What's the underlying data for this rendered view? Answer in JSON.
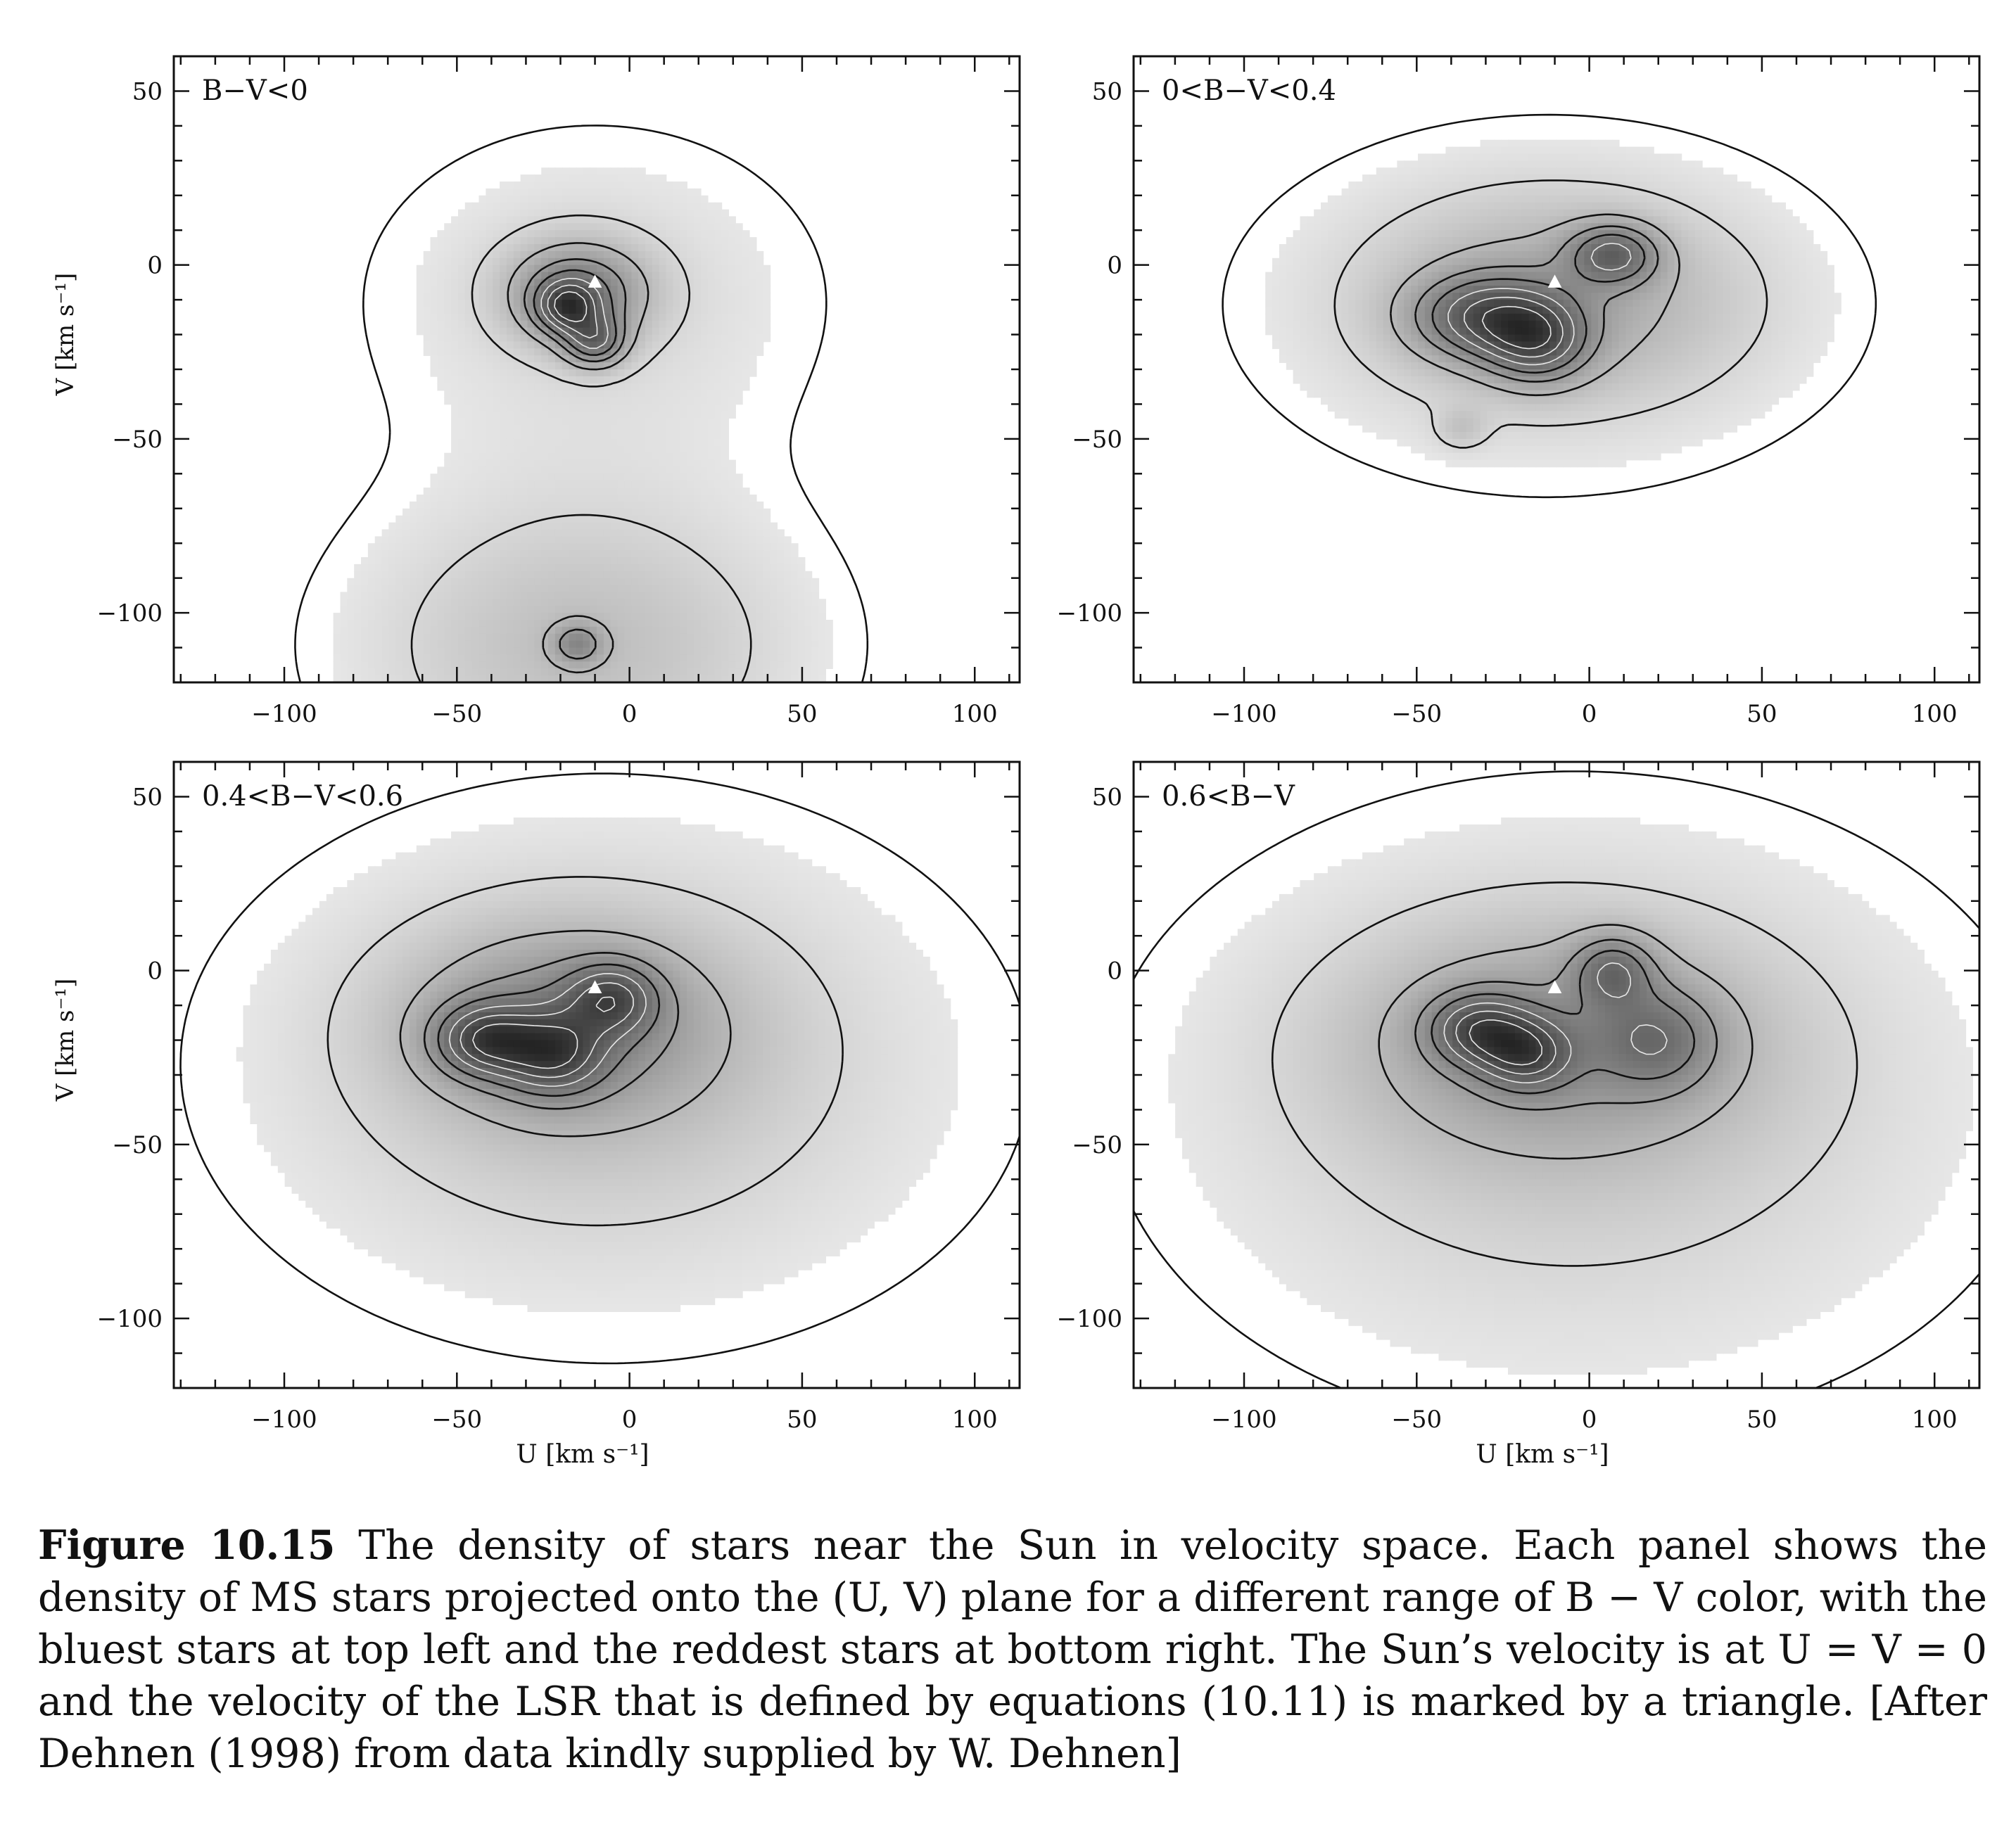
{
  "figure": {
    "label": "Figure 10.15",
    "caption": "The density of stars near the Sun in velocity space. Each panel shows the density of MS stars projected onto the (U, V) plane for a different range of B − V color, with the bluest stars at top left and the reddest stars at bottom right. The Sun’s velocity is at U = V = 0 and the velocity of the LSR that is defined by equations (10.11) is marked by a triangle. [After Dehnen (1998) from data kindly supplied by W. Dehnen]"
  },
  "chart_data": [
    {
      "type": "contour",
      "panel": "top-left",
      "label": "B−V<0",
      "xlabel": "",
      "ylabel": "V [km s⁻¹]",
      "xlim": [
        -132,
        113
      ],
      "ylim": [
        -120,
        60
      ],
      "xticks": [
        -100,
        -50,
        0,
        50,
        100
      ],
      "yticks": [
        50,
        0,
        -50,
        -100
      ],
      "xtick_labels": [
        "−100",
        "−50",
        "0",
        "50",
        "100"
      ],
      "ytick_labels": [
        "50",
        "0",
        "−50",
        "−100"
      ],
      "lsr_marker": {
        "U": -10,
        "V": -5
      },
      "blobs": [
        {
          "U": -18,
          "V": -12,
          "su": 6,
          "sv": 5,
          "w": 1.0
        },
        {
          "U": -10,
          "V": -22,
          "su": 6,
          "sv": 5,
          "w": 0.9
        },
        {
          "U": -15,
          "V": -8,
          "su": 14,
          "sv": 10,
          "w": 0.9
        },
        {
          "U": -10,
          "V": -10,
          "su": 48,
          "sv": 36,
          "w": 0.22
        },
        {
          "U": -14,
          "V": -110,
          "su": 45,
          "sv": 30,
          "w": 0.45
        },
        {
          "U": -15,
          "V": -109,
          "su": 5,
          "sv": 4,
          "w": 0.6
        }
      ]
    },
    {
      "type": "contour",
      "panel": "top-right",
      "label": "0<B−V<0.4",
      "xlabel": "",
      "ylabel": "",
      "xlim": [
        -132,
        113
      ],
      "ylim": [
        -120,
        60
      ],
      "xticks": [
        -100,
        -50,
        0,
        50,
        100
      ],
      "yticks": [
        50,
        0,
        -50,
        -100
      ],
      "xtick_labels": [
        "−100",
        "−50",
        "0",
        "50",
        "100"
      ],
      "ytick_labels": [
        "50",
        "0",
        "−50",
        "−100"
      ],
      "lsr_marker": {
        "U": -10,
        "V": -5
      },
      "blobs": [
        {
          "U": 7,
          "V": 3,
          "su": 9,
          "sv": 6,
          "w": 0.9
        },
        {
          "U": -30,
          "V": -15,
          "su": 14,
          "sv": 8,
          "w": 1.0
        },
        {
          "U": -15,
          "V": -22,
          "su": 10,
          "sv": 8,
          "w": 0.9
        },
        {
          "U": -10,
          "V": -10,
          "su": 40,
          "sv": 22,
          "w": 0.55
        },
        {
          "U": -15,
          "V": -15,
          "su": 70,
          "sv": 45,
          "w": 0.12
        },
        {
          "U": -37,
          "V": -47,
          "su": 5,
          "sv": 4,
          "w": 0.25
        }
      ]
    },
    {
      "type": "contour",
      "panel": "bottom-left",
      "label": "0.4<B−V<0.6",
      "xlabel": "U [km s⁻¹]",
      "ylabel": "V [km s⁻¹]",
      "xlim": [
        -132,
        113
      ],
      "ylim": [
        -120,
        60
      ],
      "xticks": [
        -100,
        -50,
        0,
        50,
        100
      ],
      "yticks": [
        50,
        0,
        -50,
        -100
      ],
      "xtick_labels": [
        "−100",
        "−50",
        "0",
        "50",
        "100"
      ],
      "ytick_labels": [
        "50",
        "0",
        "−50",
        "−100"
      ],
      "lsr_marker": {
        "U": -10,
        "V": -5
      },
      "blobs": [
        {
          "U": -42,
          "V": -20,
          "su": 10,
          "sv": 7,
          "w": 1.0
        },
        {
          "U": -22,
          "V": -24,
          "su": 10,
          "sv": 8,
          "w": 0.9
        },
        {
          "U": -5,
          "V": -8,
          "su": 9,
          "sv": 7,
          "w": 0.85
        },
        {
          "U": -20,
          "V": -15,
          "su": 30,
          "sv": 18,
          "w": 0.6
        },
        {
          "U": -10,
          "V": -25,
          "su": 55,
          "sv": 38,
          "w": 0.35
        },
        {
          "U": 0,
          "V": -35,
          "su": 110,
          "sv": 75,
          "w": 0.1
        }
      ]
    },
    {
      "type": "contour",
      "panel": "bottom-right",
      "label": "0.6<B−V",
      "xlabel": "U [km s⁻¹]",
      "ylabel": "",
      "xlim": [
        -132,
        113
      ],
      "ylim": [
        -120,
        60
      ],
      "xticks": [
        -100,
        -50,
        0,
        50,
        100
      ],
      "yticks": [
        50,
        0,
        -50,
        -100
      ],
      "xtick_labels": [
        "−100",
        "−50",
        "0",
        "50",
        "100"
      ],
      "ytick_labels": [
        "50",
        "0",
        "−50",
        "−100"
      ],
      "lsr_marker": {
        "U": -10,
        "V": -5
      },
      "blobs": [
        {
          "U": -32,
          "V": -17,
          "su": 10,
          "sv": 7,
          "w": 1.0
        },
        {
          "U": -18,
          "V": -24,
          "su": 9,
          "sv": 7,
          "w": 0.9
        },
        {
          "U": 7,
          "V": 0,
          "su": 8,
          "sv": 7,
          "w": 0.75
        },
        {
          "U": 20,
          "V": -20,
          "su": 12,
          "sv": 10,
          "w": 0.6
        },
        {
          "U": -10,
          "V": -20,
          "su": 40,
          "sv": 22,
          "w": 0.55
        },
        {
          "U": -5,
          "V": -35,
          "su": 65,
          "sv": 45,
          "w": 0.3
        },
        {
          "U": 0,
          "V": -45,
          "su": 120,
          "sv": 85,
          "w": 0.1
        }
      ]
    }
  ],
  "colors": {
    "ink": "#111111",
    "background": "#ffffff"
  }
}
